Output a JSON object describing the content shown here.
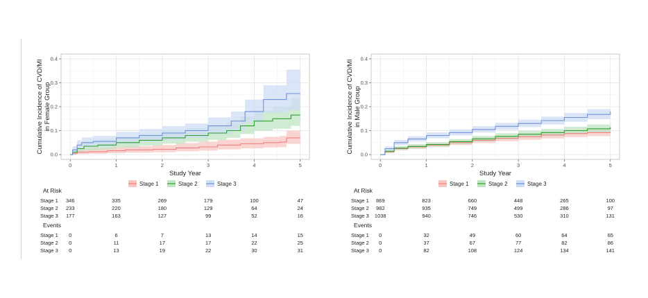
{
  "chart_data": [
    {
      "type": "line",
      "xlabel": "Study Year",
      "ylabel_lines": [
        "Cumulative Incidence of CVD/MI",
        "in Female Group"
      ],
      "xlim": [
        -0.2,
        5.2
      ],
      "ylim": [
        -0.02,
        0.42
      ],
      "x_ticks": [
        0,
        1,
        2,
        3,
        4,
        5
      ],
      "x_tick_labels": [
        "0",
        "1",
        "2",
        "3",
        "4",
        "5"
      ],
      "y_ticks": [
        0.0,
        0.1,
        0.2,
        0.3,
        0.4
      ],
      "y_tick_labels": [
        "0.0",
        "0.1",
        "0.2",
        "0.3",
        "0.4"
      ],
      "grid": true,
      "legend_position": "bottom",
      "series": [
        {
          "name": "Stage 1",
          "color": "#f08080",
          "fill": "#f8c6c2",
          "x": [
            0,
            0.05,
            0.15,
            0.4,
            0.8,
            1.2,
            1.8,
            2.3,
            2.8,
            3.2,
            3.7,
            4.2,
            4.55,
            4.7,
            5.0
          ],
          "y": [
            0,
            0.005,
            0.01,
            0.012,
            0.016,
            0.02,
            0.022,
            0.028,
            0.032,
            0.04,
            0.045,
            0.05,
            0.052,
            0.07,
            0.07
          ],
          "lower": [
            0,
            0.0,
            0.002,
            0.004,
            0.006,
            0.008,
            0.01,
            0.014,
            0.017,
            0.022,
            0.026,
            0.03,
            0.031,
            0.045,
            0.045
          ],
          "upper": [
            0,
            0.015,
            0.025,
            0.028,
            0.032,
            0.036,
            0.04,
            0.048,
            0.054,
            0.062,
            0.068,
            0.074,
            0.078,
            0.1,
            0.1
          ]
        },
        {
          "name": "Stage 2",
          "color": "#2ca02c",
          "fill": "#bfe5c4",
          "x": [
            0,
            0.05,
            0.15,
            0.3,
            0.6,
            1.0,
            1.5,
            2.0,
            2.5,
            3.0,
            3.4,
            3.7,
            4.0,
            4.4,
            4.8,
            5.0
          ],
          "y": [
            0,
            0.01,
            0.025,
            0.035,
            0.04,
            0.05,
            0.06,
            0.07,
            0.08,
            0.09,
            0.1,
            0.12,
            0.14,
            0.15,
            0.165,
            0.165
          ],
          "lower": [
            0,
            0.0,
            0.01,
            0.018,
            0.022,
            0.03,
            0.038,
            0.046,
            0.054,
            0.062,
            0.07,
            0.086,
            0.1,
            0.108,
            0.12,
            0.12
          ],
          "upper": [
            0,
            0.02,
            0.042,
            0.055,
            0.062,
            0.074,
            0.086,
            0.098,
            0.11,
            0.122,
            0.134,
            0.158,
            0.185,
            0.2,
            0.235,
            0.235
          ]
        },
        {
          "name": "Stage 3",
          "color": "#6f8fd8",
          "fill": "#cfdcf6",
          "x": [
            0,
            0.05,
            0.15,
            0.25,
            0.5,
            1.0,
            1.5,
            2.0,
            2.5,
            3.0,
            3.5,
            3.8,
            4.2,
            4.7,
            5.0
          ],
          "y": [
            0,
            0.02,
            0.04,
            0.05,
            0.055,
            0.07,
            0.08,
            0.09,
            0.1,
            0.12,
            0.14,
            0.18,
            0.23,
            0.255,
            0.255
          ],
          "lower": [
            0,
            0.008,
            0.022,
            0.03,
            0.034,
            0.046,
            0.054,
            0.062,
            0.07,
            0.086,
            0.102,
            0.135,
            0.175,
            0.185,
            0.185
          ],
          "upper": [
            0,
            0.035,
            0.06,
            0.072,
            0.078,
            0.095,
            0.107,
            0.119,
            0.13,
            0.155,
            0.18,
            0.23,
            0.29,
            0.355,
            0.355
          ]
        }
      ],
      "risk_table": {
        "at_risk_label": "At Risk",
        "events_label": "Events",
        "rows": [
          "Stage 1",
          "Stage 2",
          "Stage 3"
        ],
        "at_risk": [
          [
            "346",
            "335",
            "269",
            "179",
            "100",
            "47"
          ],
          [
            "233",
            "220",
            "180",
            "129",
            "64",
            "24"
          ],
          [
            "177",
            "163",
            "127",
            "99",
            "52",
            "16"
          ]
        ],
        "events": [
          [
            "0",
            "6",
            "7",
            "13",
            "14",
            "15"
          ],
          [
            "0",
            "11",
            "17",
            "17",
            "22",
            "25"
          ],
          [
            "0",
            "13",
            "19",
            "22",
            "30",
            "31"
          ]
        ]
      }
    },
    {
      "type": "line",
      "xlabel": "Study Year",
      "ylabel_lines": [
        "Cumulative Incidence of CVD/MI",
        "in Male Group"
      ],
      "xlim": [
        -0.2,
        5.2
      ],
      "ylim": [
        -0.02,
        0.42
      ],
      "x_ticks": [
        0,
        1,
        2,
        3,
        4,
        5
      ],
      "x_tick_labels": [
        "0",
        "1",
        "2",
        "3",
        "4",
        "5"
      ],
      "y_ticks": [
        0.0,
        0.1,
        0.2,
        0.3,
        0.4
      ],
      "y_tick_labels": [
        "0.0",
        "0.1",
        "0.2",
        "0.3",
        "0.4"
      ],
      "grid": true,
      "legend_position": "bottom",
      "series": [
        {
          "name": "Stage 1",
          "color": "#f08080",
          "fill": "#f8c6c2",
          "x": [
            0,
            0.1,
            0.3,
            0.6,
            1.0,
            1.5,
            2.0,
            2.5,
            3.0,
            3.5,
            4.0,
            4.5,
            5.0
          ],
          "y": [
            0,
            0.012,
            0.025,
            0.032,
            0.04,
            0.05,
            0.06,
            0.068,
            0.075,
            0.082,
            0.088,
            0.092,
            0.095
          ],
          "lower": [
            0,
            0.006,
            0.018,
            0.024,
            0.031,
            0.04,
            0.049,
            0.056,
            0.062,
            0.068,
            0.073,
            0.077,
            0.08
          ],
          "upper": [
            0,
            0.02,
            0.033,
            0.041,
            0.05,
            0.061,
            0.072,
            0.081,
            0.089,
            0.097,
            0.104,
            0.108,
            0.112
          ]
        },
        {
          "name": "Stage 2",
          "color": "#2ca02c",
          "fill": "#bfe5c4",
          "x": [
            0,
            0.1,
            0.3,
            0.6,
            1.0,
            1.5,
            2.0,
            2.5,
            3.0,
            3.5,
            4.0,
            4.5,
            5.0
          ],
          "y": [
            0,
            0.014,
            0.027,
            0.034,
            0.042,
            0.054,
            0.066,
            0.076,
            0.085,
            0.092,
            0.1,
            0.108,
            0.115
          ],
          "lower": [
            0,
            0.008,
            0.02,
            0.026,
            0.033,
            0.044,
            0.055,
            0.064,
            0.072,
            0.078,
            0.085,
            0.092,
            0.096
          ],
          "upper": [
            0,
            0.022,
            0.036,
            0.044,
            0.052,
            0.065,
            0.078,
            0.089,
            0.099,
            0.107,
            0.116,
            0.126,
            0.138
          ]
        },
        {
          "name": "Stage 3",
          "color": "#6f8fd8",
          "fill": "#cfdcf6",
          "x": [
            0,
            0.1,
            0.3,
            0.6,
            1.0,
            1.5,
            2.0,
            2.5,
            3.0,
            3.5,
            4.0,
            4.5,
            5.0
          ],
          "y": [
            0,
            0.025,
            0.05,
            0.065,
            0.08,
            0.092,
            0.105,
            0.118,
            0.13,
            0.142,
            0.155,
            0.168,
            0.18
          ],
          "lower": [
            0,
            0.017,
            0.04,
            0.054,
            0.068,
            0.08,
            0.092,
            0.104,
            0.115,
            0.126,
            0.137,
            0.148,
            0.158
          ],
          "upper": [
            0,
            0.034,
            0.061,
            0.077,
            0.093,
            0.106,
            0.119,
            0.133,
            0.146,
            0.159,
            0.174,
            0.19,
            0.205
          ]
        }
      ],
      "risk_table": {
        "at_risk_label": "At Risk",
        "events_label": "Events",
        "rows": [
          "Stage 1",
          "Stage 2",
          "Stage 3"
        ],
        "at_risk": [
          [
            "869",
            "823",
            "660",
            "448",
            "265",
            "100"
          ],
          [
            "982",
            "935",
            "749",
            "499",
            "286",
            "97"
          ],
          [
            "1038",
            "940",
            "746",
            "530",
            "310",
            "131"
          ]
        ],
        "events": [
          [
            "0",
            "32",
            "49",
            "60",
            "64",
            "65"
          ],
          [
            "0",
            "37",
            "67",
            "77",
            "82",
            "86"
          ],
          [
            "0",
            "82",
            "108",
            "124",
            "134",
            "141"
          ]
        ]
      }
    }
  ]
}
